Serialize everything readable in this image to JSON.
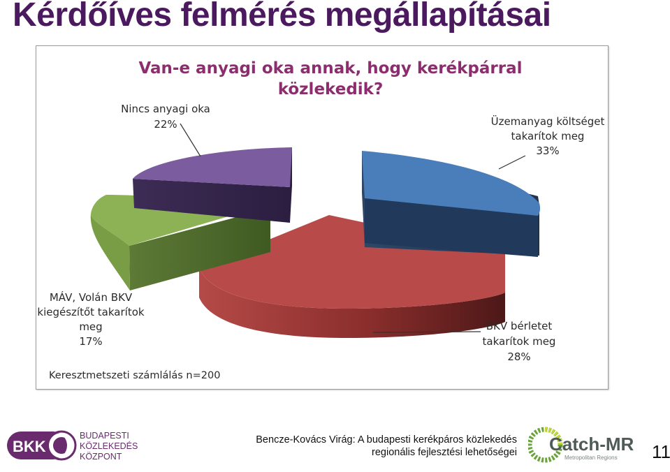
{
  "slide": {
    "title": "Kérdőíves felmérés megállapításai",
    "footer_line1": "Bencze-Kovács Virág: A budapesti kerékpáros közlekedés",
    "footer_line2": "regionális fejlesztési lehetőségei",
    "page_number": "11"
  },
  "logos": {
    "bkk_mark": "BKK",
    "bkk_text": [
      "BUDAPESTI",
      "KÖZLEKEDÉSI",
      "KÖZPONT"
    ],
    "catch_name": "Catch-MR",
    "catch_sub": "Metropolitan Regions"
  },
  "colors": {
    "title": "#4b1a5e",
    "chart_title": "#8c2e6d",
    "blue": "#4a7ebb",
    "red": "#b54a48",
    "green": "#8db255",
    "purple": "#7a5c9f"
  },
  "chart_data": {
    "type": "pie",
    "title_lines": [
      "Van-e anyagi oka annak, hogy kerékpárral",
      "közlekedik?"
    ],
    "note": "Keresztmetszeti számlálás n=200",
    "slices": [
      {
        "label_lines": [
          "Üzemanyag költséget",
          "takarítok meg"
        ],
        "value": 33,
        "value_text": "33%",
        "color": "#4a7ebb"
      },
      {
        "label_lines": [
          "BKV bérletet",
          "takarítok meg"
        ],
        "value": 28,
        "value_text": "28%",
        "color": "#b54a48"
      },
      {
        "label_lines": [
          "MÁV, Volán BKV",
          "kiegészítőt takarítok",
          "meg"
        ],
        "value": 17,
        "value_text": "17%",
        "color": "#8db255"
      },
      {
        "label_lines": [
          "Nincs anyagi oka"
        ],
        "value": 22,
        "value_text": "22%",
        "color": "#7a5c9f"
      }
    ]
  }
}
